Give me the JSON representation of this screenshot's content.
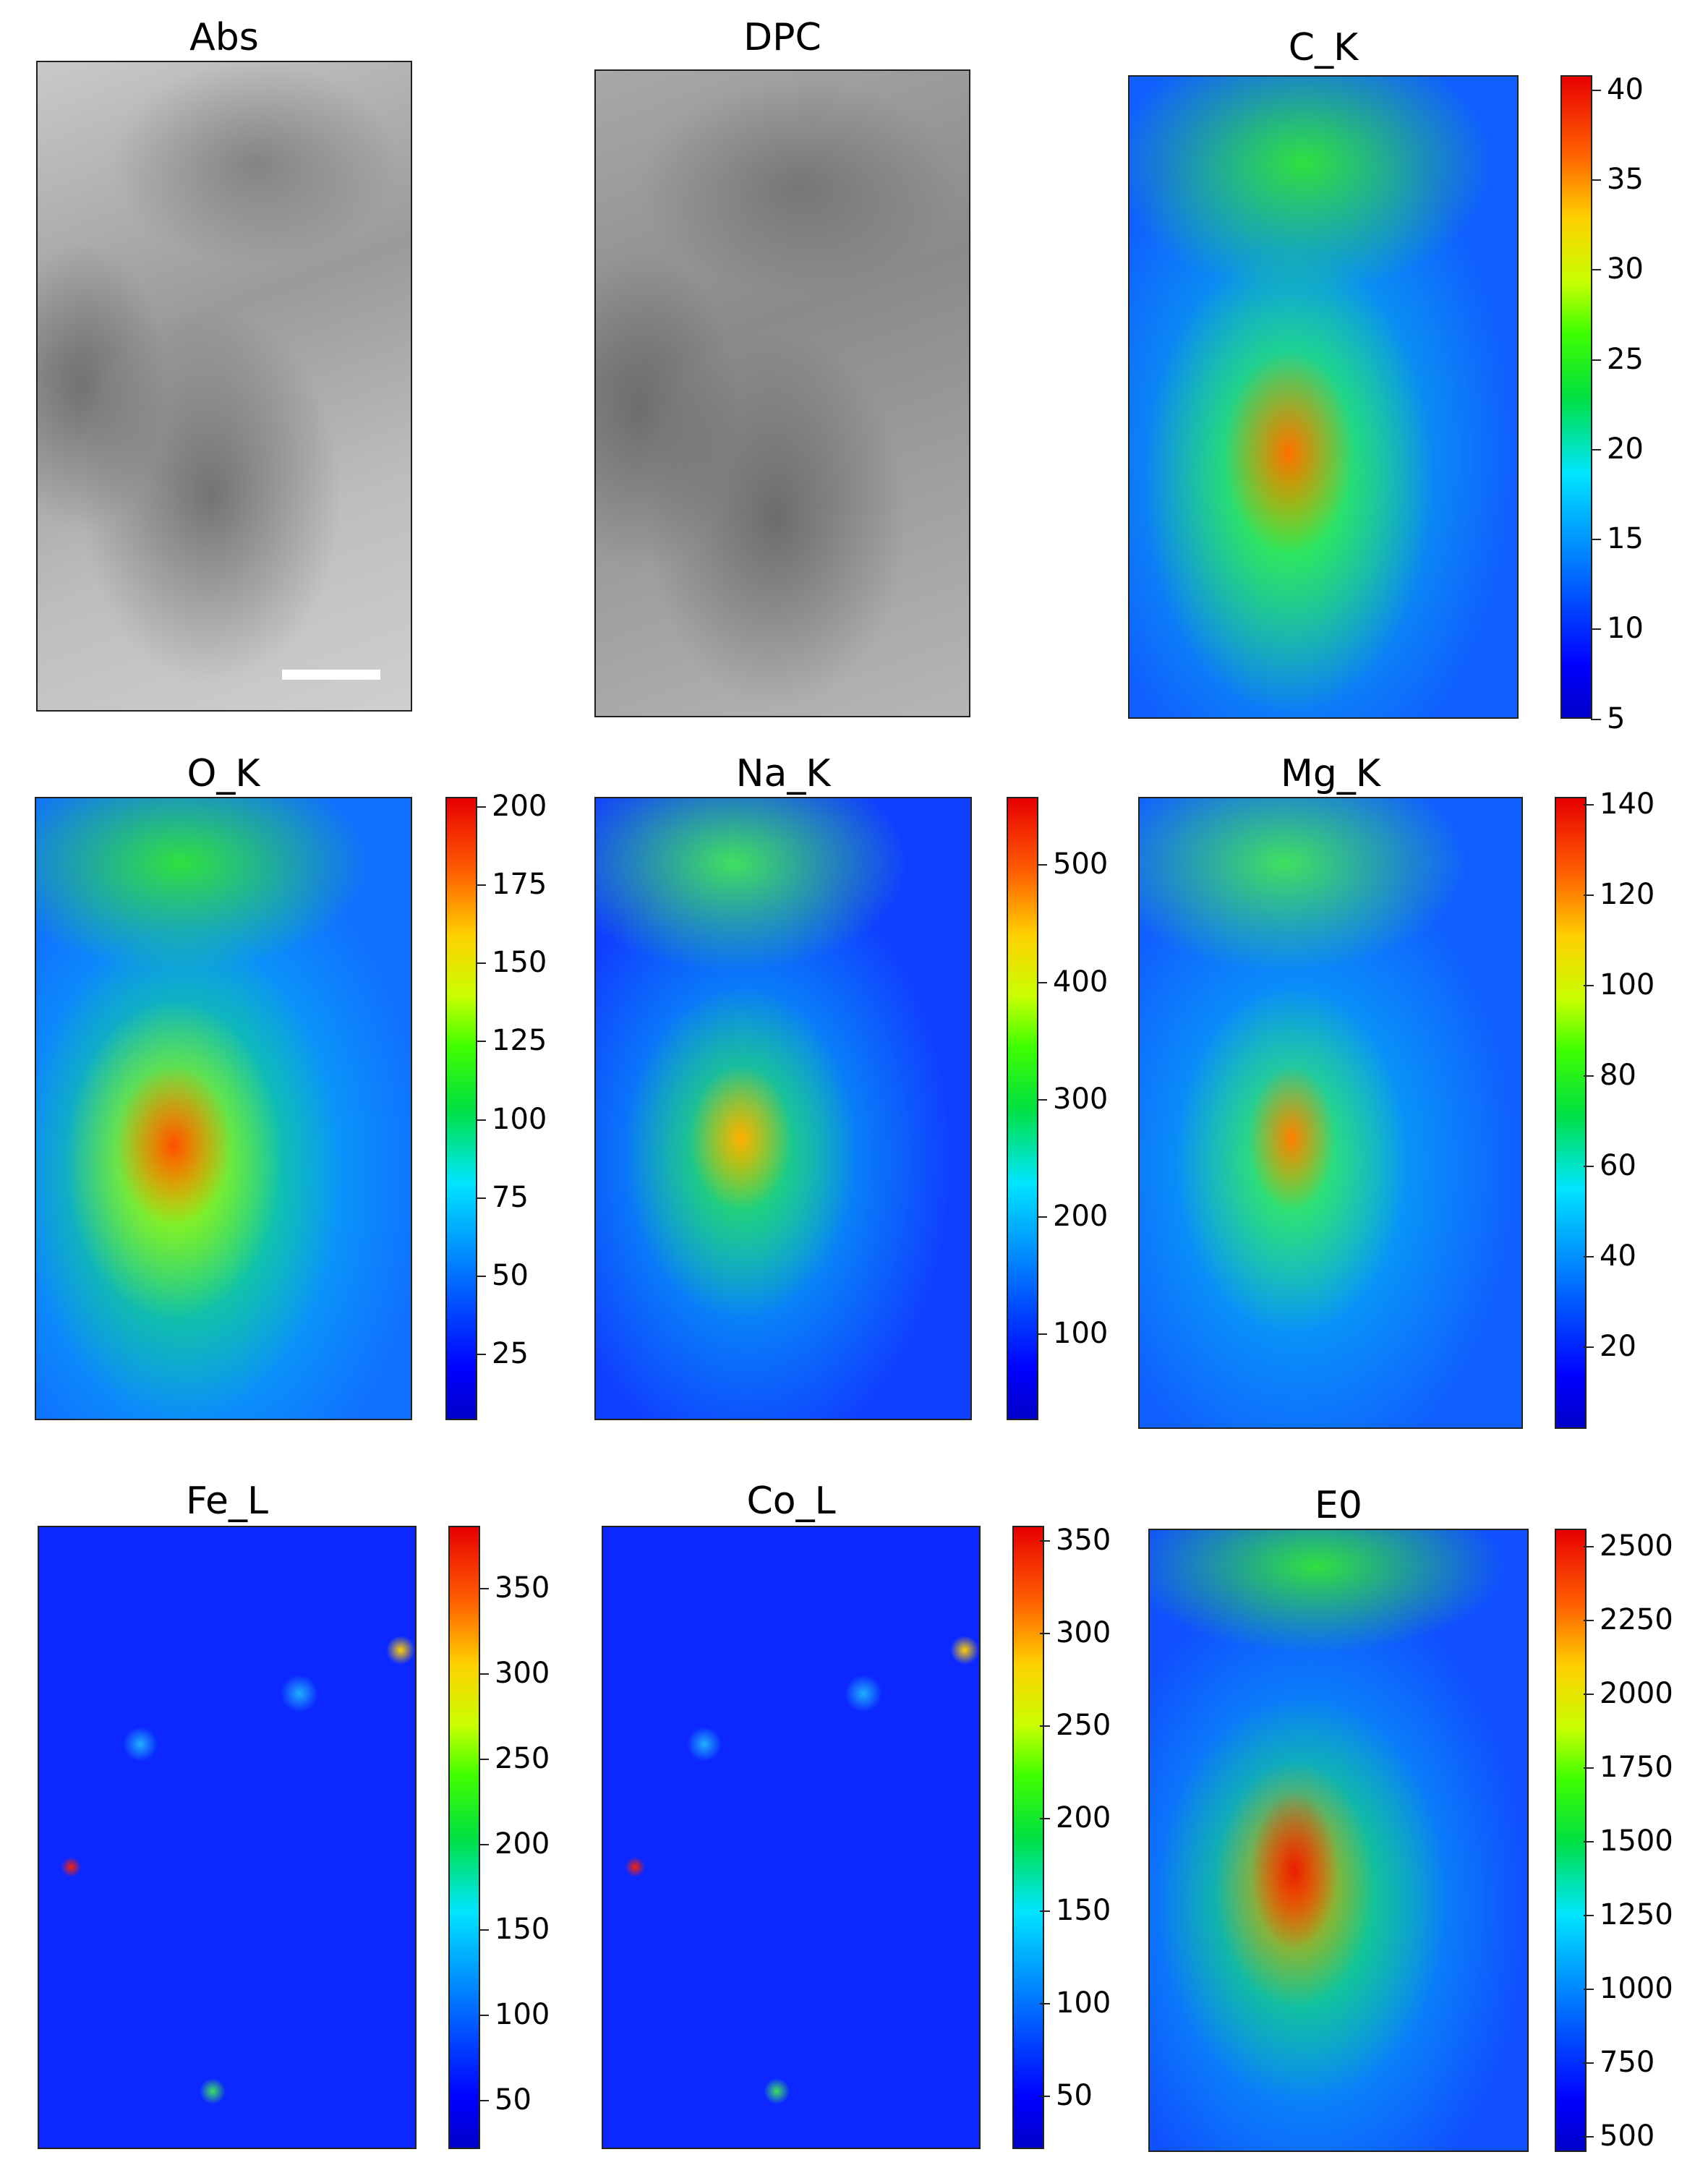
{
  "panels": [
    {
      "id": "abs",
      "title": "Abs",
      "colormap": "gray",
      "ticks": []
    },
    {
      "id": "dpc",
      "title": "DPC",
      "colormap": "gray",
      "ticks": []
    },
    {
      "id": "ck",
      "title": "C_K",
      "colormap": "jet",
      "ticks": [
        "40",
        "35",
        "30",
        "25",
        "20",
        "15",
        "10",
        "5"
      ]
    },
    {
      "id": "ok",
      "title": "O_K",
      "colormap": "jet",
      "ticks": [
        "200",
        "175",
        "150",
        "125",
        "100",
        "75",
        "50",
        "25"
      ]
    },
    {
      "id": "nak",
      "title": "Na_K",
      "colormap": "jet",
      "ticks": [
        "500",
        "400",
        "300",
        "200",
        "100"
      ]
    },
    {
      "id": "mgk",
      "title": "Mg_K",
      "colormap": "jet",
      "ticks": [
        "140",
        "120",
        "100",
        "80",
        "60",
        "40",
        "20"
      ]
    },
    {
      "id": "fel",
      "title": "Fe_L",
      "colormap": "jet",
      "ticks": [
        "350",
        "300",
        "250",
        "200",
        "150",
        "100",
        "50"
      ]
    },
    {
      "id": "col",
      "title": "Co_L",
      "colormap": "jet",
      "ticks": [
        "350",
        "300",
        "250",
        "200",
        "150",
        "100",
        "50"
      ]
    },
    {
      "id": "e0",
      "title": "E0",
      "colormap": "jet",
      "ticks": [
        "2500",
        "2250",
        "2000",
        "1750",
        "1500",
        "1250",
        "1000",
        "750",
        "500"
      ]
    }
  ],
  "colors": {
    "low": "#0000ff",
    "mid": "#00e040",
    "high": "#e80000",
    "gray_light": "#d8d8d8",
    "gray_dark": "#6a6a6a"
  }
}
